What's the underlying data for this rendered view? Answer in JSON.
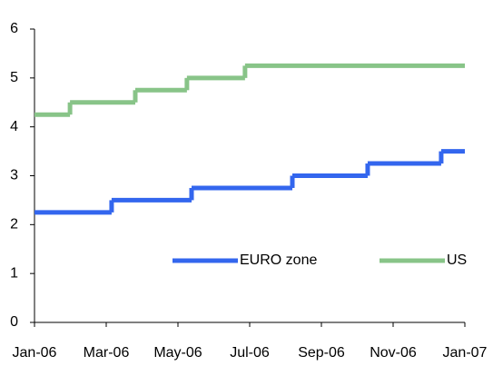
{
  "chart_data": {
    "type": "line",
    "step": "post",
    "series": [
      {
        "name": "EURO zone",
        "color": "#3366ee",
        "x": [
          0,
          2.15,
          4.38,
          7.19,
          9.29,
          11.34
        ],
        "values": [
          2.25,
          2.5,
          2.75,
          3,
          3.25,
          3.5
        ]
      },
      {
        "name": "US",
        "color": "#88c488",
        "x": [
          0,
          0.99,
          2.81,
          4.25,
          5.87
        ],
        "values": [
          4.25,
          4.5,
          4.75,
          5,
          5.25
        ]
      }
    ],
    "xlim": [
      0,
      12
    ],
    "xticks": [
      {
        "value": 0,
        "label": "Jan-06"
      },
      {
        "value": 2,
        "label": "Mar-06"
      },
      {
        "value": 4,
        "label": "May-06"
      },
      {
        "value": 6,
        "label": "Jul-06"
      },
      {
        "value": 8,
        "label": "Sep-06"
      },
      {
        "value": 10,
        "label": "Nov-06"
      },
      {
        "value": 12,
        "label": "Jan-07"
      }
    ],
    "ylim": [
      0,
      6
    ],
    "yticks": [
      0,
      1,
      2,
      3,
      4,
      5,
      6
    ],
    "grid": false,
    "legend": "lower right"
  }
}
